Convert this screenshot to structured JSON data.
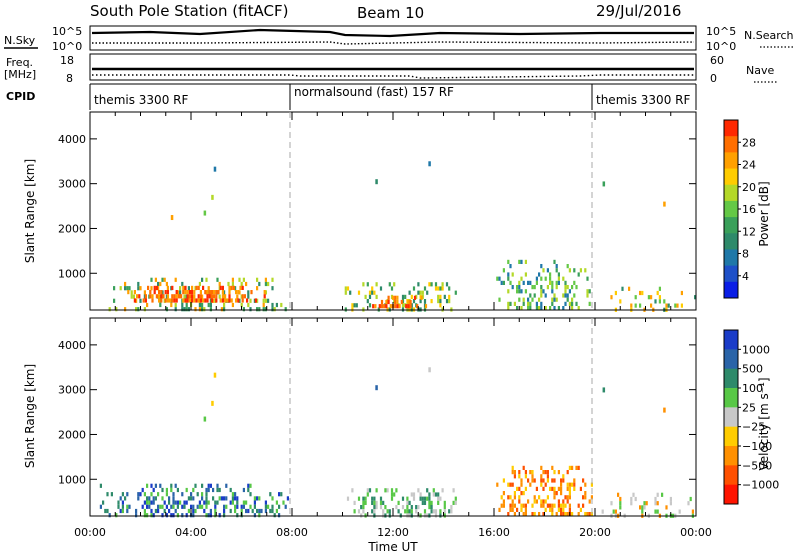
{
  "header": {
    "station": "South Pole Station (fitACF)",
    "beam": "Beam 10",
    "date": "29/Jul/2016"
  },
  "summary": {
    "nsky_label": "N.Sky",
    "nsearch_label": "N.Search",
    "noise_ticks": [
      "10^5",
      "10^0"
    ],
    "freq_label_1": "Freq.",
    "freq_label_2": "[MHz]",
    "freq_ticks": [
      "18",
      "8"
    ],
    "nave_label": "Nave",
    "nave_ticks": [
      "60",
      "0"
    ],
    "cpid_label": "CPID",
    "cpid_segments": [
      {
        "label": "themis 3300 RF",
        "start_hour": 0,
        "end_hour": 8
      },
      {
        "label": "normalsound (fast) 157 RF",
        "start_hour": 8,
        "end_hour": 20
      },
      {
        "label": "themis 3300 RF",
        "start_hour": 20,
        "end_hour": 24
      }
    ]
  },
  "chart_data": [
    {
      "type": "heatmap",
      "title": "",
      "xlabel": "",
      "ylabel": "Slant Range [km]",
      "xlim_hours": [
        0,
        24
      ],
      "ylim": [
        180,
        4600
      ],
      "yticks": [
        1000,
        2000,
        3000,
        4000
      ],
      "colorbar": {
        "label": "Power [dB]",
        "range": [
          0,
          32
        ],
        "ticks": [
          "4",
          "8",
          "12",
          "16",
          "20",
          "24",
          "28"
        ],
        "tick_values": [
          4,
          8,
          12,
          16,
          20,
          24,
          28
        ],
        "colors": [
          "#0a1ee6",
          "#1e50c8",
          "#1f78a8",
          "#2e8a6a",
          "#3aa05a",
          "#64c846",
          "#b4d828",
          "#ffcc00",
          "#ffa000",
          "#ff6e00",
          "#ff2800"
        ]
      },
      "patches": [
        {
          "x0": 0.3,
          "x1": 8.0,
          "y0": 200,
          "y1": 900,
          "density": 0.45,
          "levels": [
            10,
            14,
            20,
            24
          ]
        },
        {
          "x0": 1.3,
          "x1": 7.0,
          "y0": 350,
          "y1": 720,
          "density": 0.85,
          "levels": [
            24,
            28,
            30
          ]
        },
        {
          "x0": 10.0,
          "x1": 14.8,
          "y0": 200,
          "y1": 800,
          "density": 0.45,
          "levels": [
            10,
            14,
            18,
            22
          ]
        },
        {
          "x0": 11.0,
          "x1": 13.5,
          "y0": 250,
          "y1": 500,
          "density": 0.8,
          "levels": [
            24,
            28,
            30
          ]
        },
        {
          "x0": 16.0,
          "x1": 20.0,
          "y0": 250,
          "y1": 1300,
          "density": 0.45,
          "levels": [
            8,
            12,
            16,
            20
          ]
        },
        {
          "x0": 20.0,
          "x1": 24.0,
          "y0": 200,
          "y1": 700,
          "density": 0.25,
          "levels": [
            10,
            16,
            22,
            26
          ]
        }
      ],
      "scatter": [
        {
          "hour": 4.5,
          "range": 2400,
          "value": 16
        },
        {
          "hour": 4.8,
          "range": 2750,
          "value": 18
        },
        {
          "hour": 4.9,
          "range": 3380,
          "value": 6
        },
        {
          "hour": 3.2,
          "range": 2300,
          "value": 24
        },
        {
          "hour": 11.3,
          "range": 3100,
          "value": 10
        },
        {
          "hour": 13.4,
          "range": 3500,
          "value": 8
        },
        {
          "hour": 22.7,
          "range": 2600,
          "value": 26
        },
        {
          "hour": 20.3,
          "range": 3050,
          "value": 12
        }
      ]
    },
    {
      "type": "heatmap",
      "title": "",
      "xlabel": "Time UT",
      "ylabel": "Slant Range [km]",
      "xlim_hours": [
        0,
        24
      ],
      "ylim": [
        180,
        4600
      ],
      "yticks": [
        1000,
        2000,
        3000,
        4000
      ],
      "xticks": [
        "00:00",
        "04:00",
        "08:00",
        "12:00",
        "16:00",
        "20:00",
        "00:00"
      ],
      "colorbar": {
        "label": "Velocity [m s⁻¹]",
        "ticks": [
          "1000",
          "500",
          "100",
          "25",
          "-25",
          "-100",
          "-500",
          "-1000"
        ],
        "colors": [
          "#1a3cc8",
          "#2a64a8",
          "#2e8a6a",
          "#58c846",
          "#c8c8c8",
          "#ffcc00",
          "#ff9000",
          "#ff5000",
          "#ff1400"
        ]
      },
      "patches": [
        {
          "x0": 0.3,
          "x1": 8.0,
          "y0": 200,
          "y1": 900,
          "density": 0.55,
          "levels": [
            0,
            1,
            2,
            3
          ]
        },
        {
          "x0": 10.0,
          "x1": 14.8,
          "y0": 200,
          "y1": 800,
          "density": 0.5,
          "levels": [
            2,
            3,
            4
          ]
        },
        {
          "x0": 16.0,
          "x1": 20.0,
          "y0": 250,
          "y1": 1300,
          "density": 0.55,
          "levels": [
            5,
            6,
            7
          ]
        },
        {
          "x0": 20.0,
          "x1": 24.0,
          "y0": 200,
          "y1": 700,
          "density": 0.25,
          "levels": [
            3,
            4,
            6
          ]
        }
      ],
      "scatter": [
        {
          "hour": 4.5,
          "range": 2400,
          "level": 3
        },
        {
          "hour": 4.8,
          "range": 2750,
          "level": 5
        },
        {
          "hour": 4.9,
          "range": 3380,
          "level": 5
        },
        {
          "hour": 11.3,
          "range": 3100,
          "level": 1
        },
        {
          "hour": 13.4,
          "range": 3500,
          "level": 4
        },
        {
          "hour": 22.7,
          "range": 2600,
          "level": 6
        },
        {
          "hour": 20.3,
          "range": 3050,
          "level": 2
        }
      ]
    }
  ]
}
